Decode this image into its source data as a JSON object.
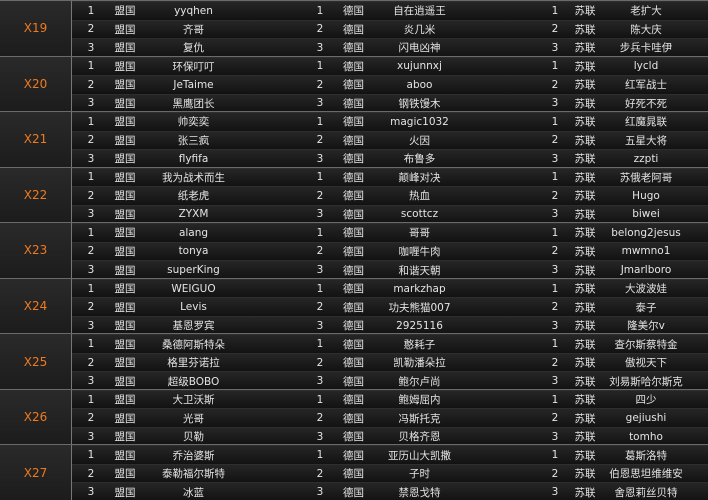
{
  "groups": [
    {
      "label": "X19",
      "rows": [
        [
          1,
          "盟国",
          "yyqhen",
          1,
          "德国",
          "自在逍遥王",
          1,
          "苏联",
          "老扩大"
        ],
        [
          2,
          "盟国",
          "齐哥",
          2,
          "德国",
          "炎几米",
          2,
          "苏联",
          "陈大庆"
        ],
        [
          3,
          "盟国",
          "复仇",
          3,
          "德国",
          "闪电凶神",
          3,
          "苏联",
          "步兵卡哇伊"
        ]
      ]
    },
    {
      "label": "X20",
      "rows": [
        [
          1,
          "盟国",
          "环保叮叮",
          1,
          "德国",
          "xujunnxj",
          1,
          "苏联",
          "lycld"
        ],
        [
          2,
          "盟国",
          "JeTaime",
          2,
          "德国",
          "aboo",
          2,
          "苏联",
          "红军战士"
        ],
        [
          3,
          "盟国",
          "黑鹰团长",
          3,
          "德国",
          "钢铁馒木",
          3,
          "苏联",
          "好死不死"
        ]
      ]
    },
    {
      "label": "X21",
      "rows": [
        [
          1,
          "盟国",
          "帅奕奕",
          1,
          "德国",
          "magic1032",
          1,
          "苏联",
          "红魔晁联"
        ],
        [
          2,
          "盟国",
          "张三疯",
          2,
          "德国",
          "火因",
          2,
          "苏联",
          "五星大将"
        ],
        [
          3,
          "盟国",
          "flyfifa",
          3,
          "德国",
          "布鲁多",
          3,
          "苏联",
          "zzpti"
        ]
      ]
    },
    {
      "label": "X22",
      "rows": [
        [
          1,
          "盟国",
          "我为战术而生",
          1,
          "德国",
          "颠峰对决",
          1,
          "苏联",
          "苏俄老阿哥"
        ],
        [
          2,
          "盟国",
          "纸老虎",
          2,
          "德国",
          "热血",
          2,
          "苏联",
          "Hugo"
        ],
        [
          3,
          "盟国",
          "ZYXM",
          3,
          "德国",
          "scottcz",
          3,
          "苏联",
          "biwei"
        ]
      ]
    },
    {
      "label": "X23",
      "rows": [
        [
          1,
          "盟国",
          "alang",
          1,
          "德国",
          "哥哥",
          1,
          "苏联",
          "belong2jesus"
        ],
        [
          2,
          "盟国",
          "tonya",
          2,
          "德国",
          "咖喱牛肉",
          2,
          "苏联",
          "mwmno1"
        ],
        [
          3,
          "盟国",
          "superKing",
          3,
          "德国",
          "和谐天朝",
          3,
          "苏联",
          "Jmarlboro"
        ]
      ]
    },
    {
      "label": "X24",
      "rows": [
        [
          1,
          "盟国",
          "WEIGUO",
          1,
          "德国",
          "markzhap",
          1,
          "苏联",
          "大波波娃"
        ],
        [
          2,
          "盟国",
          "Levis",
          2,
          "德国",
          "功夫熊猫007",
          2,
          "苏联",
          "泰子"
        ],
        [
          3,
          "盟国",
          "基恩罗宾",
          3,
          "德国",
          "2925116",
          3,
          "苏联",
          "隆美尔v"
        ]
      ]
    },
    {
      "label": "X25",
      "rows": [
        [
          1,
          "盟国",
          "桑德阿斯特朵",
          1,
          "德国",
          "憨耗子",
          1,
          "苏联",
          "查尔斯蔡特金"
        ],
        [
          2,
          "盟国",
          "格里芬诺拉",
          2,
          "德国",
          "凯勒潘朵拉",
          2,
          "苏联",
          "傲视天下"
        ],
        [
          3,
          "盟国",
          "超级BOBO",
          3,
          "德国",
          "鲍尔卢尚",
          3,
          "苏联",
          "刘易斯哈尔斯克"
        ]
      ]
    },
    {
      "label": "X26",
      "rows": [
        [
          1,
          "盟国",
          "大卫沃斯",
          1,
          "德国",
          "鲍姆屈内",
          1,
          "苏联",
          "四少"
        ],
        [
          2,
          "盟国",
          "光哥",
          2,
          "德国",
          "冯斯托克",
          2,
          "苏联",
          "gejiushi"
        ],
        [
          3,
          "盟国",
          "贝勒",
          3,
          "德国",
          "贝格齐恩",
          3,
          "苏联",
          "tomho"
        ]
      ]
    },
    {
      "label": "X27",
      "rows": [
        [
          1,
          "盟国",
          "乔治婆斯",
          1,
          "德国",
          "亚历山大凯撒",
          1,
          "苏联",
          "葛斯洛特"
        ],
        [
          2,
          "盟国",
          "泰勒福尔斯特",
          2,
          "德国",
          "子时",
          2,
          "苏联",
          "伯恩思坦维维安"
        ],
        [
          3,
          "盟国",
          "冰蓝",
          3,
          "德国",
          "禁恩戈特",
          3,
          "苏联",
          "舍恩莉丝贝特"
        ]
      ]
    }
  ]
}
